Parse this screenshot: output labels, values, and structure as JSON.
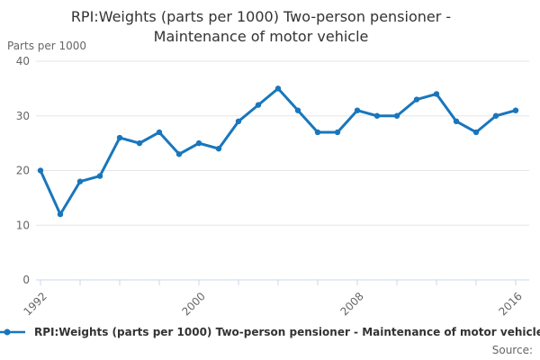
{
  "title": "RPI:Weights (parts per 1000) Two-person pensioner - Maintenance of motor vehicle",
  "y_axis_title": "Parts per 1000",
  "legend": {
    "label": "RPI:Weights (parts per 1000) Two-person pensioner - Maintenance of motor vehicle"
  },
  "source_label": "Source:",
  "colors": {
    "line": "#1976bc",
    "marker": "#1976bc",
    "grid": "#e6e6e6",
    "axis": "#ccd6eb",
    "tick_label": "#666666",
    "title_text": "#333333",
    "legend_text": "#333333"
  },
  "chart_data": {
    "type": "line",
    "title": "RPI:Weights (parts per 1000) Two-person pensioner - Maintenance of motor vehicle",
    "ylabel": "Parts per 1000",
    "xlabel": "",
    "ylim": [
      0,
      40
    ],
    "yticks": [
      0,
      10,
      20,
      30,
      40
    ],
    "xticks_labeled": [
      1992,
      2000,
      2008,
      2016
    ],
    "xtick_step_years": 2,
    "grid": "horizontal",
    "legend_position": "bottom-left",
    "x": [
      1992,
      1993,
      1994,
      1995,
      1996,
      1997,
      1998,
      1999,
      2000,
      2001,
      2002,
      2003,
      2004,
      2005,
      2006,
      2007,
      2008,
      2009,
      2010,
      2011,
      2012,
      2013,
      2014,
      2015,
      2016
    ],
    "series": [
      {
        "name": "RPI:Weights (parts per 1000) Two-person pensioner - Maintenance of motor vehicle",
        "values": [
          20,
          12,
          18,
          19,
          26,
          25,
          27,
          23,
          25,
          24,
          29,
          32,
          35,
          31,
          27,
          27,
          31,
          30,
          30,
          33,
          34,
          29,
          27,
          30,
          31
        ]
      }
    ]
  }
}
